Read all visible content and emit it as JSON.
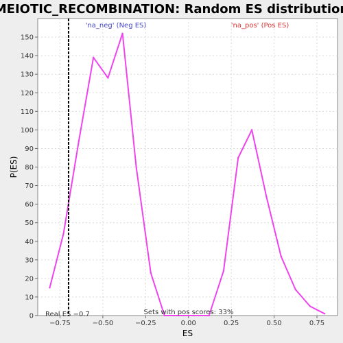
{
  "chart_data": {
    "type": "line",
    "title": "MEIOTIC_RECOMBINATION: Random ES distribution",
    "xlabel": "ES",
    "ylabel": "P(ES)",
    "xlim": [
      -0.88,
      0.87
    ],
    "ylim": [
      0,
      160
    ],
    "xticks": [
      -0.75,
      -0.5,
      -0.25,
      0.0,
      0.25,
      0.5,
      0.75
    ],
    "xtick_labels": [
      "−0.75",
      "−0.50",
      "−0.25",
      "0.00",
      "0.25",
      "0.50",
      "0.75"
    ],
    "yticks": [
      0,
      10,
      20,
      30,
      40,
      50,
      60,
      70,
      80,
      90,
      100,
      110,
      120,
      130,
      140,
      150
    ],
    "grid": true,
    "series": [
      {
        "color": "#ee44ee",
        "x": [
          -0.81,
          -0.73,
          -0.64,
          -0.555,
          -0.47,
          -0.385,
          -0.305,
          -0.22,
          -0.14,
          -0.055,
          0.03,
          0.12,
          0.205,
          0.29,
          0.37,
          0.455,
          0.54,
          0.625,
          0.71,
          0.795
        ],
        "y": [
          15,
          44,
          94,
          139,
          128,
          152,
          80,
          23,
          0,
          0,
          0,
          0,
          24,
          85,
          100,
          64,
          32,
          14,
          5,
          1
        ]
      }
    ],
    "real_es": -0.7,
    "annotations": {
      "neg_label": "'na_neg' (Neg ES)",
      "neg_color": "#4444cc",
      "pos_label": "'na_pos' (Pos ES)",
      "pos_color": "#dd3333",
      "real_es_label": "Real ES −0.7",
      "sets_label": "Sets with pos scores: 33%"
    }
  }
}
